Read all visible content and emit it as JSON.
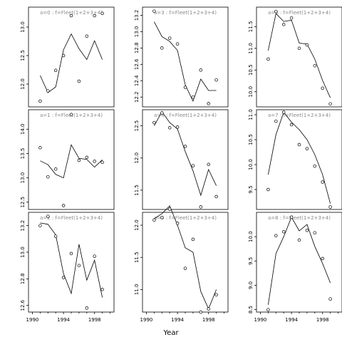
{
  "chart_data": {
    "type": "scatter",
    "layout_grid": {
      "rows": 3,
      "cols": 3
    },
    "xlabel": "Year",
    "x_ticks": [
      1990,
      1994,
      1998
    ],
    "xlim": [
      1989.5,
      2000.5
    ],
    "series_kinds": [
      "observed points",
      "fitted line"
    ],
    "panels": [
      {
        "label": "a=0 : f=Fleet(1+2+3+4)",
        "ylim": [
          11.6,
          13.35
        ],
        "y_ticks": [
          12.0,
          12.5,
          13.0
        ],
        "y_tick_labels": [
          "12.0",
          "12.5",
          "13.0"
        ],
        "points": [
          [
            1991,
            11.7
          ],
          [
            1992,
            11.88
          ],
          [
            1993,
            12.24
          ],
          [
            1994,
            12.5
          ],
          [
            1995,
            13.2
          ],
          [
            1996,
            12.05
          ],
          [
            1997,
            12.84
          ],
          [
            1998,
            13.2
          ],
          [
            1999,
            13.24
          ]
        ],
        "line": [
          [
            1991,
            12.15
          ],
          [
            1992,
            11.85
          ],
          [
            1993,
            11.95
          ],
          [
            1994,
            12.6
          ],
          [
            1995,
            12.88
          ],
          [
            1996,
            12.62
          ],
          [
            1997,
            12.43
          ],
          [
            1998,
            12.76
          ],
          [
            1999,
            12.43
          ]
        ]
      },
      {
        "label": "a=3 : f=Fleet(1+2+3+4)",
        "ylim": [
          12.08,
          13.3
        ],
        "y_ticks": [
          12.2,
          12.4,
          12.6,
          12.8,
          13.0,
          13.2
        ],
        "y_tick_labels": [
          "12.2",
          "12.4",
          "12.6",
          "12.8",
          "13.0",
          "13.2"
        ],
        "points": [
          [
            1991,
            13.25
          ],
          [
            1992,
            12.8
          ],
          [
            1993,
            12.92
          ],
          [
            1994,
            12.85
          ],
          [
            1995,
            12.32
          ],
          [
            1996,
            12.2
          ],
          [
            1997,
            12.53
          ],
          [
            1998,
            12.12
          ],
          [
            1999,
            12.41
          ]
        ],
        "line": [
          [
            1991,
            13.12
          ],
          [
            1992,
            12.94
          ],
          [
            1993,
            12.88
          ],
          [
            1994,
            12.77
          ],
          [
            1995,
            12.35
          ],
          [
            1996,
            12.15
          ],
          [
            1997,
            12.42
          ],
          [
            1998,
            12.28
          ],
          [
            1999,
            12.28
          ]
        ]
      },
      {
        "label": "a=6 : f=Fleet(1+2+3+4)",
        "ylim": [
          9.65,
          11.95
        ],
        "y_ticks": [
          10.0,
          10.5,
          11.0,
          11.5
        ],
        "y_tick_labels": [
          "10.0",
          "10.5",
          "11.0",
          "11.5"
        ],
        "points": [
          [
            1991,
            10.75
          ],
          [
            1992,
            11.85
          ],
          [
            1993,
            11.55
          ],
          [
            1994,
            11.7
          ],
          [
            1995,
            11.0
          ],
          [
            1996,
            11.08
          ],
          [
            1997,
            10.6
          ],
          [
            1998,
            10.08
          ],
          [
            1999,
            9.72
          ]
        ],
        "line": [
          [
            1991,
            10.95
          ],
          [
            1992,
            11.8
          ],
          [
            1993,
            11.62
          ],
          [
            1994,
            11.65
          ],
          [
            1995,
            11.12
          ],
          [
            1996,
            11.1
          ],
          [
            1997,
            10.75
          ],
          [
            1998,
            10.26
          ],
          [
            1999,
            9.86
          ]
        ]
      },
      {
        "label": "a=1 : f=Fleet(1+2+3+4)",
        "ylim": [
          12.35,
          14.4
        ],
        "y_ticks": [
          12.5,
          13.0,
          13.5,
          14.0
        ],
        "y_tick_labels": [
          "12.5",
          "13.0",
          "13.5",
          "14.0"
        ],
        "points": [
          [
            1991,
            13.62
          ],
          [
            1992,
            13.02
          ],
          [
            1993,
            13.18
          ],
          [
            1994,
            12.43
          ],
          [
            1995,
            14.3
          ],
          [
            1996,
            13.36
          ],
          [
            1997,
            13.42
          ],
          [
            1998,
            13.34
          ],
          [
            1999,
            13.32
          ]
        ],
        "line": [
          [
            1991,
            13.35
          ],
          [
            1992,
            13.27
          ],
          [
            1993,
            13.07
          ],
          [
            1994,
            13.0
          ],
          [
            1995,
            13.68
          ],
          [
            1996,
            13.4
          ],
          [
            1997,
            13.38
          ],
          [
            1998,
            13.22
          ],
          [
            1999,
            13.37
          ]
        ]
      },
      {
        "label": "a=4 : f=Fleet(1+2+3+4)",
        "ylim": [
          11.2,
          12.75
        ],
        "y_ticks": [
          11.5,
          12.0,
          12.5
        ],
        "y_tick_labels": [
          "11.5",
          "12.0",
          "12.5"
        ],
        "points": [
          [
            1991,
            12.55
          ],
          [
            1992,
            12.7
          ],
          [
            1993,
            12.47
          ],
          [
            1994,
            12.48
          ],
          [
            1995,
            12.18
          ],
          [
            1996,
            11.88
          ],
          [
            1997,
            11.24
          ],
          [
            1998,
            11.9
          ],
          [
            1999,
            11.4
          ]
        ],
        "line": [
          [
            1991,
            12.5
          ],
          [
            1992,
            12.72
          ],
          [
            1993,
            12.55
          ],
          [
            1994,
            12.45
          ],
          [
            1995,
            12.1
          ],
          [
            1996,
            11.8
          ],
          [
            1997,
            11.42
          ],
          [
            1998,
            11.82
          ],
          [
            1999,
            11.57
          ]
        ]
      },
      {
        "label": "a=7 : f=Fleet(1+2+3+4)",
        "ylim": [
          9.1,
          11.1
        ],
        "y_ticks": [
          9.5,
          10.0,
          10.5,
          11.0
        ],
        "y_tick_labels": [
          "9.5",
          "10.0",
          "10.5",
          "11.0"
        ],
        "points": [
          [
            1991,
            9.5
          ],
          [
            1992,
            10.87
          ],
          [
            1993,
            11.05
          ],
          [
            1994,
            10.8
          ],
          [
            1995,
            10.4
          ],
          [
            1996,
            10.32
          ],
          [
            1997,
            9.97
          ],
          [
            1998,
            9.65
          ],
          [
            1999,
            9.15
          ]
        ],
        "line": [
          [
            1991,
            9.8
          ],
          [
            1992,
            10.6
          ],
          [
            1993,
            11.05
          ],
          [
            1994,
            10.85
          ],
          [
            1995,
            10.7
          ],
          [
            1996,
            10.5
          ],
          [
            1997,
            10.2
          ],
          [
            1998,
            9.8
          ],
          [
            1999,
            9.22
          ]
        ]
      },
      {
        "label": "a=2 : f=Fleet(1+2+3+4)",
        "ylim": [
          12.55,
          13.3
        ],
        "y_ticks": [
          12.6,
          12.8,
          13.0,
          13.2
        ],
        "y_tick_labels": [
          "12.6",
          "12.8",
          "13.0",
          "13.2"
        ],
        "points": [
          [
            1991,
            13.2
          ],
          [
            1992,
            13.27
          ],
          [
            1993,
            13.12
          ],
          [
            1994,
            12.81
          ],
          [
            1995,
            12.99
          ],
          [
            1996,
            12.9
          ],
          [
            1997,
            12.58
          ],
          [
            1998,
            12.97
          ],
          [
            1999,
            12.72
          ]
        ],
        "line": [
          [
            1991,
            13.22
          ],
          [
            1992,
            13.21
          ],
          [
            1993,
            13.13
          ],
          [
            1994,
            12.84
          ],
          [
            1995,
            12.69
          ],
          [
            1996,
            13.06
          ],
          [
            1997,
            12.79
          ],
          [
            1998,
            12.94
          ],
          [
            1999,
            12.66
          ]
        ]
      },
      {
        "label": "a=5 : f=Fleet(1+2+3+4)",
        "ylim": [
          10.65,
          12.2
        ],
        "y_ticks": [
          11.0,
          11.5,
          12.0
        ],
        "y_tick_labels": [
          "11.0",
          "11.5",
          "12.0"
        ],
        "points": [
          [
            1991,
            12.08
          ],
          [
            1992,
            12.12
          ],
          [
            1993,
            12.25
          ],
          [
            1994,
            12.03
          ],
          [
            1995,
            11.33
          ],
          [
            1996,
            11.78
          ],
          [
            1997,
            10.65
          ],
          [
            1998,
            10.7
          ],
          [
            1999,
            10.92
          ]
        ],
        "line": [
          [
            1991,
            12.1
          ],
          [
            1992,
            12.18
          ],
          [
            1993,
            12.3
          ],
          [
            1994,
            12.0
          ],
          [
            1995,
            11.65
          ],
          [
            1996,
            11.58
          ],
          [
            1997,
            10.97
          ],
          [
            1998,
            10.7
          ],
          [
            1999,
            11.0
          ]
        ]
      },
      {
        "label": "a=8 : f=Fleet(1+2+3+4)",
        "ylim": [
          8.45,
          10.5
        ],
        "y_ticks": [
          8.5,
          9.0,
          9.5,
          10.0
        ],
        "y_tick_labels": [
          "8.5",
          "9.0",
          "9.5",
          "10.0"
        ],
        "points": [
          [
            1991,
            8.5
          ],
          [
            1992,
            10.02
          ],
          [
            1993,
            10.1
          ],
          [
            1994,
            10.4
          ],
          [
            1995,
            9.93
          ],
          [
            1996,
            10.13
          ],
          [
            1997,
            10.08
          ],
          [
            1998,
            9.55
          ],
          [
            1999,
            8.72
          ]
        ],
        "line": [
          [
            1991,
            8.6
          ],
          [
            1992,
            9.65
          ],
          [
            1993,
            10.0
          ],
          [
            1994,
            10.4
          ],
          [
            1995,
            10.12
          ],
          [
            1996,
            10.25
          ],
          [
            1997,
            9.8
          ],
          [
            1998,
            9.45
          ],
          [
            1999,
            9.05
          ]
        ]
      }
    ]
  }
}
